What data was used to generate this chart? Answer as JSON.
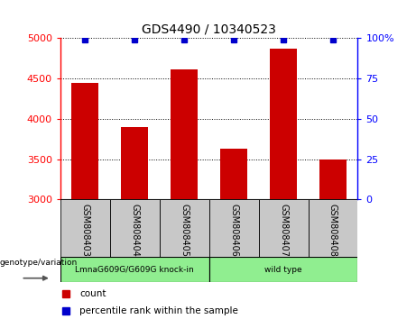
{
  "title": "GDS4490 / 10340523",
  "samples": [
    "GSM808403",
    "GSM808404",
    "GSM808405",
    "GSM808406",
    "GSM808407",
    "GSM808408"
  ],
  "bar_values": [
    4450,
    3900,
    4610,
    3630,
    4870,
    3490
  ],
  "percentile_values": [
    99,
    99,
    99,
    99,
    99,
    99
  ],
  "bar_color": "#cc0000",
  "percentile_color": "#0000cc",
  "ylim_left": [
    3000,
    5000
  ],
  "ylim_right": [
    0,
    100
  ],
  "yticks_left": [
    3000,
    3500,
    4000,
    4500,
    5000
  ],
  "yticks_right": [
    0,
    25,
    50,
    75,
    100
  ],
  "group1_label": "LmnaG609G/G609G knock-in",
  "group2_label": "wild type",
  "group1_indices": [
    0,
    1,
    2
  ],
  "group2_indices": [
    3,
    4,
    5
  ],
  "group1_bg": "#c8c8c8",
  "group2_bg": "#90ee90",
  "label_count": "count",
  "label_percentile": "percentile rank within the sample",
  "genotype_label": "genotype/variation",
  "legend_color_count": "#cc0000",
  "legend_color_percentile": "#0000cc",
  "bar_width": 0.55
}
